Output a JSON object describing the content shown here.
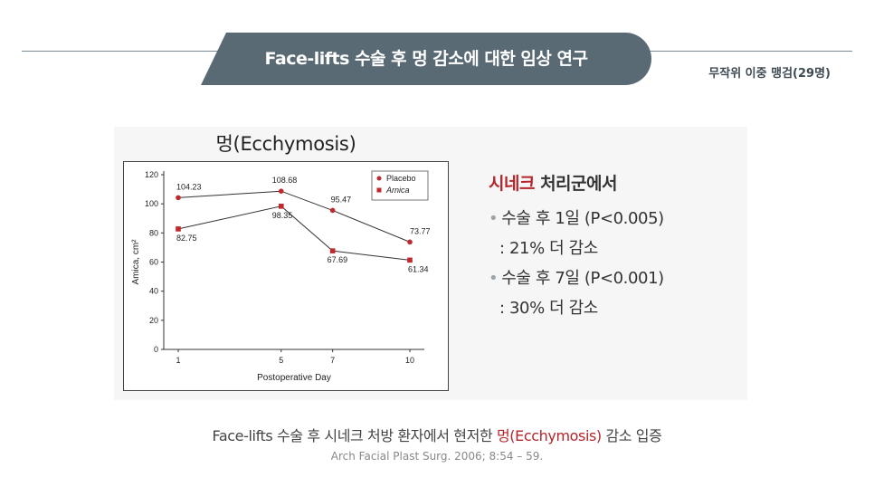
{
  "header": {
    "title": "Face-lifts 수술 후 멍 감소에 대한 임상 연구",
    "subtitle": "무작위 이중 맹검(29명)"
  },
  "chart_data": {
    "type": "line",
    "title": "멍(Ecchymosis)",
    "xlabel": "Postoperative Day",
    "ylabel": "Amica, cm²",
    "x": [
      1,
      5,
      7,
      10
    ],
    "xticks": [
      "1",
      "5",
      "7",
      "10"
    ],
    "yticks": [
      "0",
      "20",
      "40",
      "60",
      "80",
      "100",
      "120"
    ],
    "ylim": [
      0,
      120
    ],
    "legend_position": "top-right",
    "grid": false,
    "series": [
      {
        "name": "Placebo",
        "values": [
          104.23,
          108.68,
          95.47,
          73.77
        ],
        "labels": [
          "104.23",
          "108.68",
          "95.47",
          "73.77"
        ],
        "marker": "circle",
        "color": "#c0282d"
      },
      {
        "name": "Arnica",
        "values": [
          82.75,
          98.35,
          67.69,
          61.34
        ],
        "labels": [
          "82.75",
          "98.35",
          "67.69",
          "61.34"
        ],
        "marker": "square",
        "color": "#c0282d"
      }
    ]
  },
  "side": {
    "head_red": "시네크",
    "head_rest": " 처리군에서",
    "bullet": "•",
    "items": [
      {
        "line1": "수술 후 1일 (P<0.005)",
        "line2": ": 21% 더 감소"
      },
      {
        "line1": "수술 후 7일 (P<0.001)",
        "line2": ": 30% 더 감소"
      }
    ]
  },
  "caption": {
    "before": "Face-lifts 수술 후 시네크 처방 환자에서 현저한 ",
    "highlight": "멍(Ecchymosis)",
    "after": " 감소 입증",
    "source": "Arch Facial Plast Surg. 2006; 8:54 – 59."
  }
}
